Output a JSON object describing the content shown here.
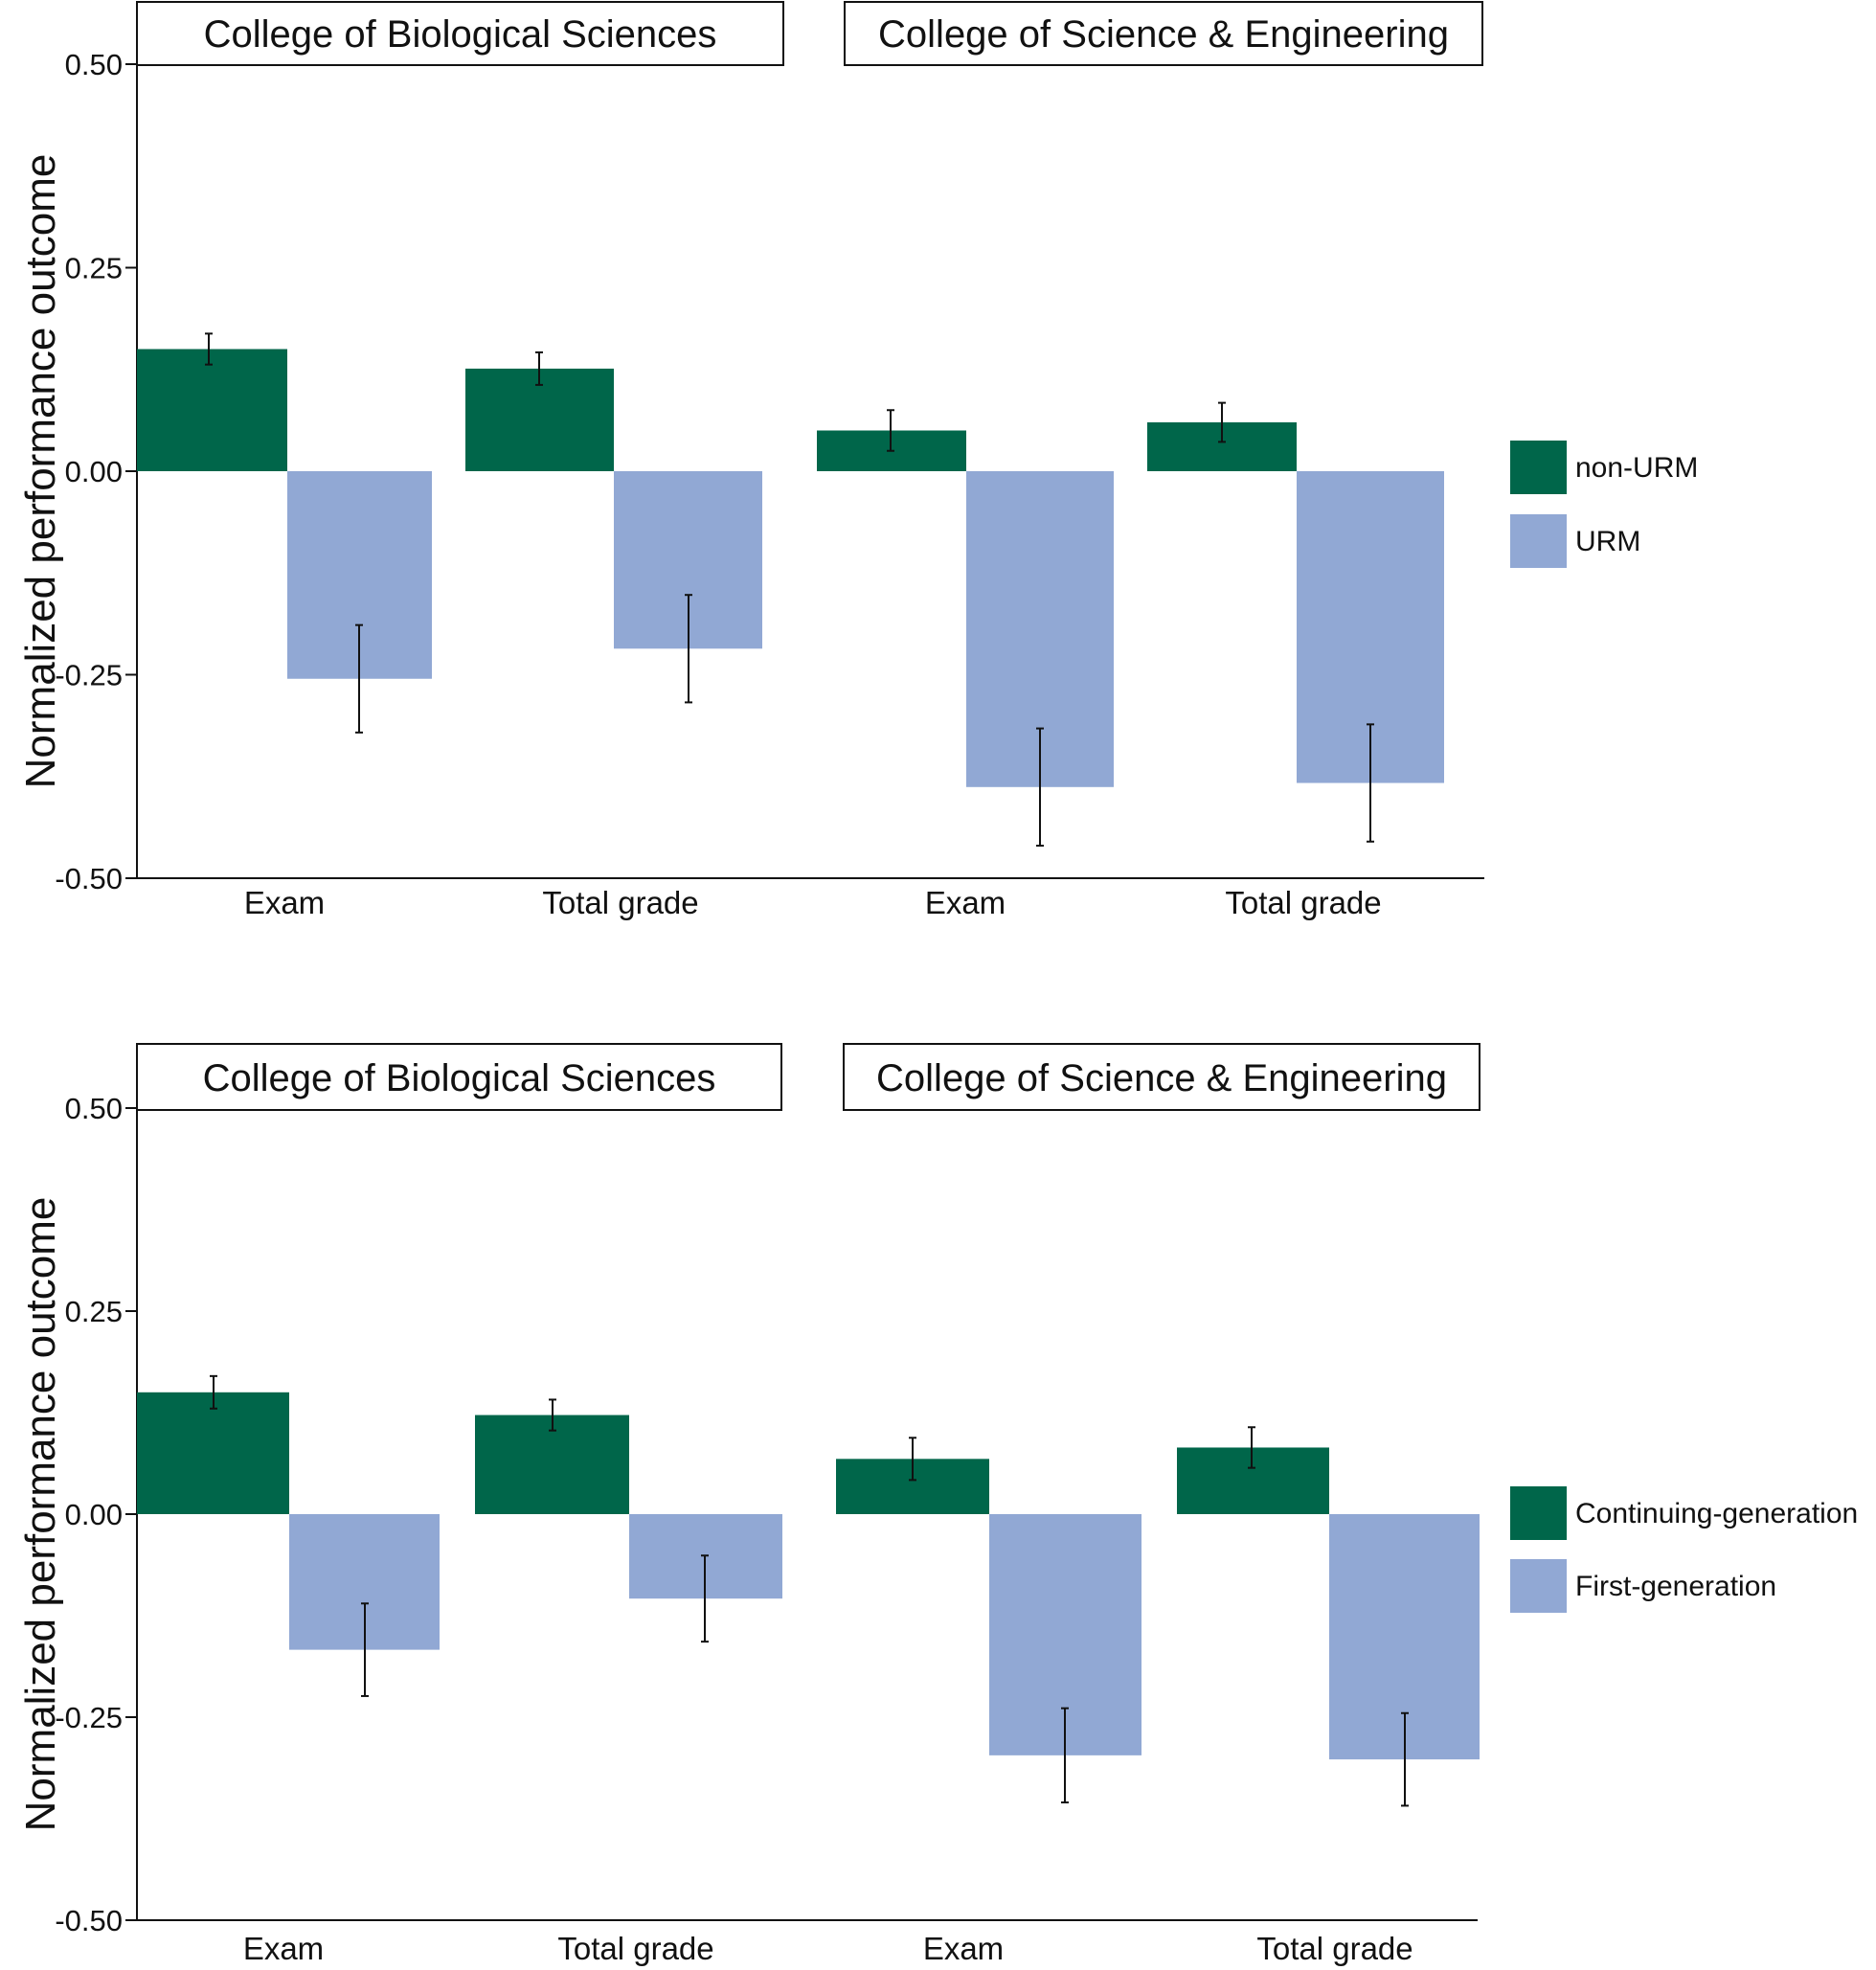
{
  "chart_data": [
    {
      "type": "bar",
      "ylabel": "Normalized performance outcome",
      "ylim": [
        -0.5,
        0.5
      ],
      "yticks": [
        0.5,
        0.25,
        0.0,
        -0.25,
        -0.5
      ],
      "ytick_labels": [
        "0.50",
        "0.25",
        "0.00",
        "-0.25",
        "-0.50"
      ],
      "groups": [
        {
          "title": "College of Biological Sciences",
          "categories": [
            "Exam",
            "Total grade"
          ]
        },
        {
          "title": "College of Science & Engineering",
          "categories": [
            "Exam",
            "Total grade"
          ]
        }
      ],
      "categories": [
        "Exam",
        "Total grade",
        "Exam",
        "Total grade"
      ],
      "series": [
        {
          "name": "non-URM",
          "color": "#00664a",
          "values": [
            0.15,
            0.126,
            0.05,
            0.06
          ],
          "error": [
            0.019,
            0.02,
            0.025,
            0.024
          ]
        },
        {
          "name": "URM",
          "color": "#91a8d4",
          "values": [
            -0.255,
            -0.218,
            -0.388,
            -0.383
          ],
          "error": [
            0.066,
            0.066,
            0.072,
            0.072
          ]
        }
      ],
      "legend": [
        "non-URM",
        "URM"
      ]
    },
    {
      "type": "bar",
      "ylabel": "Normalized performance outcome",
      "ylim": [
        -0.5,
        0.5
      ],
      "yticks": [
        0.5,
        0.25,
        0.0,
        -0.25,
        -0.5
      ],
      "ytick_labels": [
        "0.50",
        "0.25",
        "0.00",
        "-0.25",
        "-0.50"
      ],
      "groups": [
        {
          "title": "College of Biological Sciences",
          "categories": [
            "Exam",
            "Total grade"
          ]
        },
        {
          "title": "College of Science & Engineering",
          "categories": [
            "Exam",
            "Total grade"
          ]
        }
      ],
      "categories": [
        "Exam",
        "Total grade",
        "Exam",
        "Total grade"
      ],
      "series": [
        {
          "name": "Continuing-generation",
          "color": "#00664a",
          "values": [
            0.15,
            0.122,
            0.068,
            0.082
          ],
          "error": [
            0.02,
            0.019,
            0.026,
            0.025
          ]
        },
        {
          "name": "First-generation",
          "color": "#91a8d4",
          "values": [
            -0.167,
            -0.104,
            -0.297,
            -0.302
          ],
          "error": [
            0.057,
            0.053,
            0.058,
            0.057
          ]
        }
      ],
      "legend": [
        "Continuing-generation",
        "First-generation"
      ]
    }
  ]
}
